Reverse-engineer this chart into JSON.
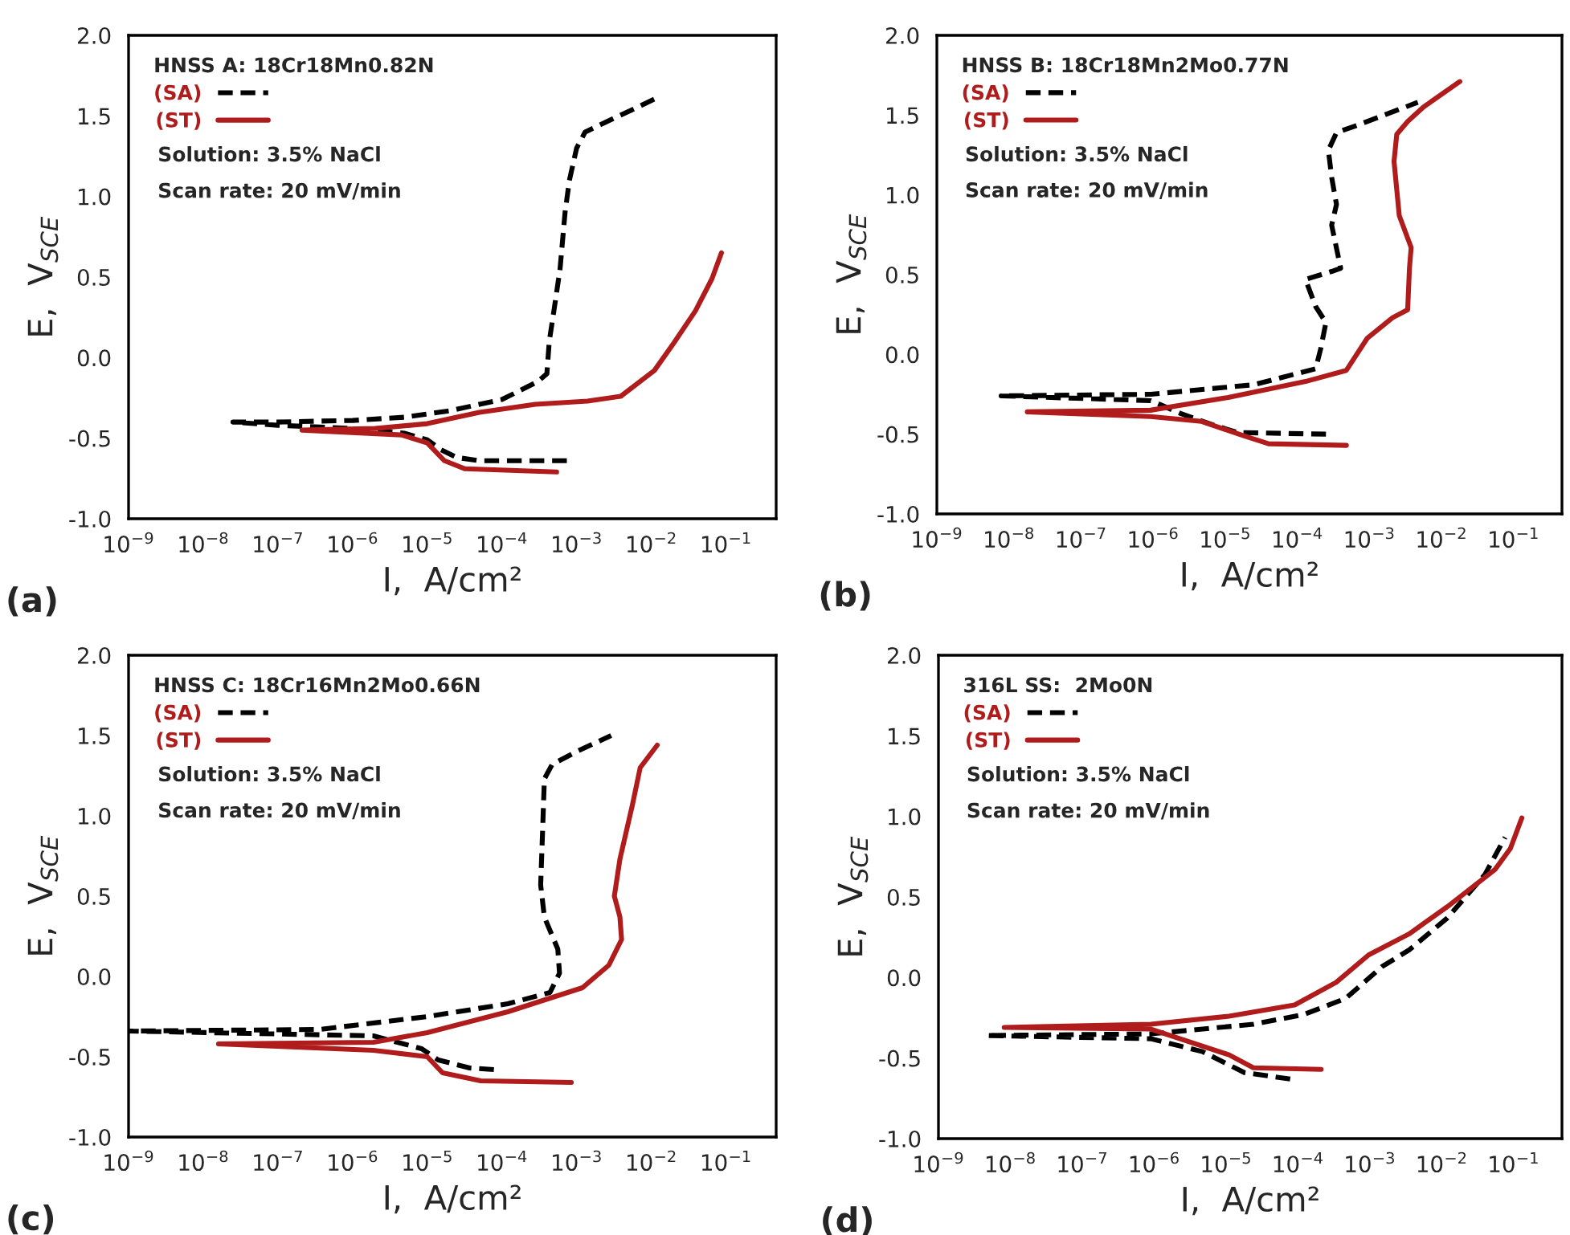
{
  "chart_data": [
    {
      "type": "line",
      "title": "(a)",
      "legend_title": "HNSS A: 18Cr18Mn0.82N",
      "xlabel": "I,  A/cm²",
      "ylabel": "E,  V$_{SCE}$",
      "log": "x",
      "legend": "top left",
      "annotations": [
        "Solution: 3.5% NaCl",
        "Scan rate: 20 mV/min"
      ],
      "xlim": [
        1e-09,
        0.47
      ],
      "xticks": [
        {
          "value": 1e-09,
          "label": "10$^{−9}$"
        },
        {
          "value": 1e-08,
          "label": "10$^{−8}$"
        },
        {
          "value": 1e-07,
          "label": "10$^{−7}$"
        },
        {
          "value": 1e-06,
          "label": "10$^{−6}$"
        },
        {
          "value": 1e-05,
          "label": "10$^{−5}$"
        },
        {
          "value": 0.0001,
          "label": "10$^{−4}$"
        },
        {
          "value": 0.001,
          "label": "10$^{−3}$"
        },
        {
          "value": 0.01,
          "label": "10$^{−2}$"
        },
        {
          "value": 0.1,
          "label": "10$^{−1}$"
        }
      ],
      "ylim": [
        -1.0,
        2.0
      ],
      "yticks": [
        {
          "value": -1.0,
          "label": "-1.0"
        },
        {
          "value": -0.5,
          "label": "-0.5"
        },
        {
          "value": 0.0,
          "label": "0.0"
        },
        {
          "value": 0.5,
          "label": "0.5"
        },
        {
          "value": 1.0,
          "label": "1.0"
        },
        {
          "value": 1.5,
          "label": "1.5"
        },
        {
          "value": 2.0,
          "label": "2.0"
        }
      ],
      "series": [
        {
          "name": "(SA)",
          "color": "#000000",
          "line_style": "dashed",
          "x": [
            0.00074,
            0.0002,
            5e-05,
            2.5e-05,
            1.5e-05,
            1e-05,
            5e-06,
            1e-06,
            1e-07,
            2.5e-08,
            1e-07,
            1e-06,
            5e-06,
            2e-05,
            0.0001,
            0.0003,
            0.0004,
            0.00043,
            0.0005,
            0.0006,
            0.0007,
            0.0008,
            0.001,
            0.0013,
            0.003,
            0.013
          ],
          "values": [
            -0.64,
            -0.64,
            -0.64,
            -0.62,
            -0.57,
            -0.51,
            -0.47,
            -0.44,
            -0.42,
            -0.4,
            -0.4,
            -0.39,
            -0.37,
            -0.33,
            -0.26,
            -0.15,
            -0.1,
            0.1,
            0.3,
            0.55,
            0.9,
            1.1,
            1.3,
            1.4,
            1.48,
            1.62
          ]
        },
        {
          "name": "(ST)",
          "color": "#b01c1c",
          "line_style": "solid",
          "x": [
            0.00054,
            3.2e-05,
            1.7e-05,
            1e-05,
            4.5e-06,
            2.1e-07,
            2e-06,
            1e-05,
            5e-05,
            0.00028,
            0.0014,
            0.0039,
            0.011,
            0.02,
            0.039,
            0.065,
            0.087
          ],
          "values": [
            -0.71,
            -0.69,
            -0.64,
            -0.53,
            -0.48,
            -0.45,
            -0.44,
            -0.41,
            -0.34,
            -0.29,
            -0.27,
            -0.24,
            -0.08,
            0.09,
            0.29,
            0.49,
            0.65
          ]
        }
      ]
    },
    {
      "type": "line",
      "title": "(b)",
      "legend_title": "HNSS B: 18Cr18Mn2Mo0.77N",
      "xlabel": "I,  A/cm²",
      "ylabel": "E,  V$_{SCE}$",
      "log": "x",
      "legend": "top left",
      "annotations": [
        "Solution: 3.5% NaCl",
        "Scan rate: 20 mV/min"
      ],
      "xlim": [
        1e-09,
        0.47
      ],
      "xticks": [
        {
          "value": 1e-09,
          "label": "10$^{−9}$"
        },
        {
          "value": 1e-08,
          "label": "10$^{−8}$"
        },
        {
          "value": 1e-07,
          "label": "10$^{−7}$"
        },
        {
          "value": 1e-06,
          "label": "10$^{−6}$"
        },
        {
          "value": 1e-05,
          "label": "10$^{−5}$"
        },
        {
          "value": 0.0001,
          "label": "10$^{−4}$"
        },
        {
          "value": 0.001,
          "label": "10$^{−3}$"
        },
        {
          "value": 0.01,
          "label": "10$^{−2}$"
        },
        {
          "value": 0.1,
          "label": "10$^{−1}$"
        }
      ],
      "ylim": [
        -1.0,
        2.0
      ],
      "yticks": [
        {
          "value": -1.0,
          "label": "-1.0"
        },
        {
          "value": -0.5,
          "label": "-0.5"
        },
        {
          "value": 0.0,
          "label": "0.0"
        },
        {
          "value": 0.5,
          "label": "0.5"
        },
        {
          "value": 1.0,
          "label": "1.0"
        },
        {
          "value": 1.5,
          "label": "1.5"
        },
        {
          "value": 2.0,
          "label": "2.0"
        }
      ],
      "series": [
        {
          "name": "(SA)",
          "color": "#000000",
          "line_style": "dashed",
          "x": [
            0.00025,
            1.5e-05,
            6.5e-06,
            2.4e-06,
            9.3e-07,
            7.8e-09,
            9.3e-07,
            2.5e-05,
            0.00018,
            0.00021,
            0.00025,
            0.00018,
            0.00013,
            0.0003,
            0.0004,
            0.0003,
            0.00035,
            0.0003,
            0.00027,
            0.00035,
            0.00072,
            0.0047
          ],
          "values": [
            -0.5,
            -0.49,
            -0.44,
            -0.37,
            -0.29,
            -0.26,
            -0.25,
            -0.19,
            -0.09,
            0.03,
            0.2,
            0.3,
            0.47,
            0.52,
            0.54,
            0.81,
            0.94,
            1.11,
            1.28,
            1.39,
            1.44,
            1.58
          ]
        },
        {
          "name": "(ST)",
          "color": "#b01c1c",
          "line_style": "solid",
          "x": [
            0.00048,
            4e-05,
            1.8e-05,
            4.7e-06,
            9.2e-07,
            1.8e-08,
            9.2e-07,
            1.1e-05,
            0.00013,
            0.00048,
            0.00093,
            0.0021,
            0.0034,
            0.0036,
            0.0038,
            0.0026,
            0.0022,
            0.0024,
            0.0034,
            0.0056,
            0.018
          ],
          "values": [
            -0.57,
            -0.56,
            -0.51,
            -0.42,
            -0.39,
            -0.36,
            -0.35,
            -0.27,
            -0.17,
            -0.1,
            0.1,
            0.23,
            0.28,
            0.54,
            0.67,
            0.87,
            1.21,
            1.38,
            1.46,
            1.55,
            1.71
          ]
        }
      ]
    },
    {
      "type": "line",
      "title": "(c)",
      "legend_title": "HNSS C: 18Cr16Mn2Mo0.66N",
      "xlabel": "I,  A/cm²",
      "ylabel": "E,  V$_{SCE}$",
      "log": "x",
      "legend": "top left",
      "annotations": [
        "Solution: 3.5% NaCl",
        "Scan rate: 20 mV/min"
      ],
      "xlim": [
        1e-09,
        0.47
      ],
      "xticks": [
        {
          "value": 1e-09,
          "label": "10$^{−9}$"
        },
        {
          "value": 1e-08,
          "label": "10$^{−8}$"
        },
        {
          "value": 1e-07,
          "label": "10$^{−7}$"
        },
        {
          "value": 1e-06,
          "label": "10$^{−6}$"
        },
        {
          "value": 1e-05,
          "label": "10$^{−5}$"
        },
        {
          "value": 0.0001,
          "label": "10$^{−4}$"
        },
        {
          "value": 0.001,
          "label": "10$^{−3}$"
        },
        {
          "value": 0.01,
          "label": "10$^{−2}$"
        },
        {
          "value": 0.1,
          "label": "10$^{−1}$"
        }
      ],
      "ylim": [
        -1.0,
        2.0
      ],
      "yticks": [
        {
          "value": -1.0,
          "label": "-1.0"
        },
        {
          "value": -0.5,
          "label": "-0.5"
        },
        {
          "value": 0.0,
          "label": "0.0"
        },
        {
          "value": 0.5,
          "label": "0.5"
        },
        {
          "value": 1.0,
          "label": "1.0"
        },
        {
          "value": 1.5,
          "label": "1.5"
        },
        {
          "value": 2.0,
          "label": "2.0"
        }
      ],
      "series": [
        {
          "name": "(SA)",
          "color": "#000000",
          "line_style": "dashed",
          "x": [
            7.8e-05,
            3.7e-05,
            1.4e-05,
            8.4e-06,
            1.9e-06,
            1e-09,
            3.6e-07,
            1e-05,
            0.00012,
            0.00044,
            0.00059,
            0.00056,
            0.00037,
            0.00033,
            0.00035,
            0.00037,
            0.00047,
            0.001,
            0.0029
          ],
          "values": [
            -0.58,
            -0.57,
            -0.52,
            -0.45,
            -0.37,
            -0.34,
            -0.33,
            -0.25,
            -0.17,
            -0.1,
            0.02,
            0.17,
            0.37,
            0.57,
            0.9,
            1.23,
            1.32,
            1.4,
            1.5
          ]
        },
        {
          "name": "(ST)",
          "color": "#b01c1c",
          "line_style": "solid",
          "x": [
            0.00085,
            5.2e-05,
            1.6e-05,
            1e-05,
            1.9e-06,
            1.6e-08,
            1.9e-06,
            1e-05,
            0.00012,
            0.0012,
            0.0027,
            0.004,
            0.0038,
            0.0032,
            0.0038,
            0.0056,
            0.0071,
            0.012
          ],
          "values": [
            -0.66,
            -0.65,
            -0.6,
            -0.5,
            -0.46,
            -0.42,
            -0.41,
            -0.35,
            -0.22,
            -0.07,
            0.07,
            0.23,
            0.37,
            0.5,
            0.73,
            1.07,
            1.3,
            1.44
          ]
        }
      ]
    },
    {
      "type": "line",
      "title": "(d)",
      "legend_title": "316L SS:  2Mo0N",
      "xlabel": "I,  A/cm²",
      "ylabel": "E,  V$_{SCE}$",
      "log": "x",
      "legend": "top left",
      "annotations": [
        "Solution: 3.5% NaCl",
        "Scan rate: 20 mV/min"
      ],
      "xlim": [
        1e-09,
        0.47
      ],
      "xticks": [
        {
          "value": 1e-09,
          "label": "10$^{−9}$"
        },
        {
          "value": 1e-08,
          "label": "10$^{−8}$"
        },
        {
          "value": 1e-07,
          "label": "10$^{−7}$"
        },
        {
          "value": 1e-06,
          "label": "10$^{−6}$"
        },
        {
          "value": 1e-05,
          "label": "10$^{−5}$"
        },
        {
          "value": 0.0001,
          "label": "10$^{−4}$"
        },
        {
          "value": 0.001,
          "label": "10$^{−3}$"
        },
        {
          "value": 0.01,
          "label": "10$^{−2}$"
        },
        {
          "value": 0.1,
          "label": "10$^{−1}$"
        }
      ],
      "ylim": [
        -1.0,
        2.0
      ],
      "yticks": [
        {
          "value": -1.0,
          "label": "-1.0"
        },
        {
          "value": -0.5,
          "label": "-0.5"
        },
        {
          "value": 0.0,
          "label": "0.0"
        },
        {
          "value": 0.5,
          "label": "0.5"
        },
        {
          "value": 1.0,
          "label": "1.0"
        },
        {
          "value": 1.5,
          "label": "1.5"
        },
        {
          "value": 2.0,
          "label": "2.0"
        }
      ],
      "series": [
        {
          "name": "(SA)",
          "color": "#000000",
          "line_style": "dashed",
          "x": [
            7.8e-05,
            1.8e-05,
            4.7e-06,
            9e-07,
            4.6e-09,
            9e-07,
            2.4e-05,
            0.00012,
            0.00046,
            0.0015,
            0.0035,
            0.012,
            0.04,
            0.076
          ],
          "values": [
            -0.63,
            -0.59,
            -0.46,
            -0.38,
            -0.36,
            -0.35,
            -0.29,
            -0.23,
            -0.13,
            0.07,
            0.17,
            0.37,
            0.64,
            0.87
          ]
        },
        {
          "name": "(ST)",
          "color": "#b01c1c",
          "line_style": "solid",
          "x": [
            0.00021,
            2.4e-05,
            1.1e-05,
            9e-07,
            8.2e-09,
            9e-07,
            1.1e-05,
            9e-05,
            0.00034,
            0.00096,
            0.0035,
            0.012,
            0.055,
            0.09,
            0.13
          ],
          "values": [
            -0.57,
            -0.56,
            -0.48,
            -0.32,
            -0.31,
            -0.29,
            -0.24,
            -0.17,
            -0.03,
            0.14,
            0.27,
            0.44,
            0.67,
            0.8,
            0.99
          ]
        }
      ]
    }
  ]
}
